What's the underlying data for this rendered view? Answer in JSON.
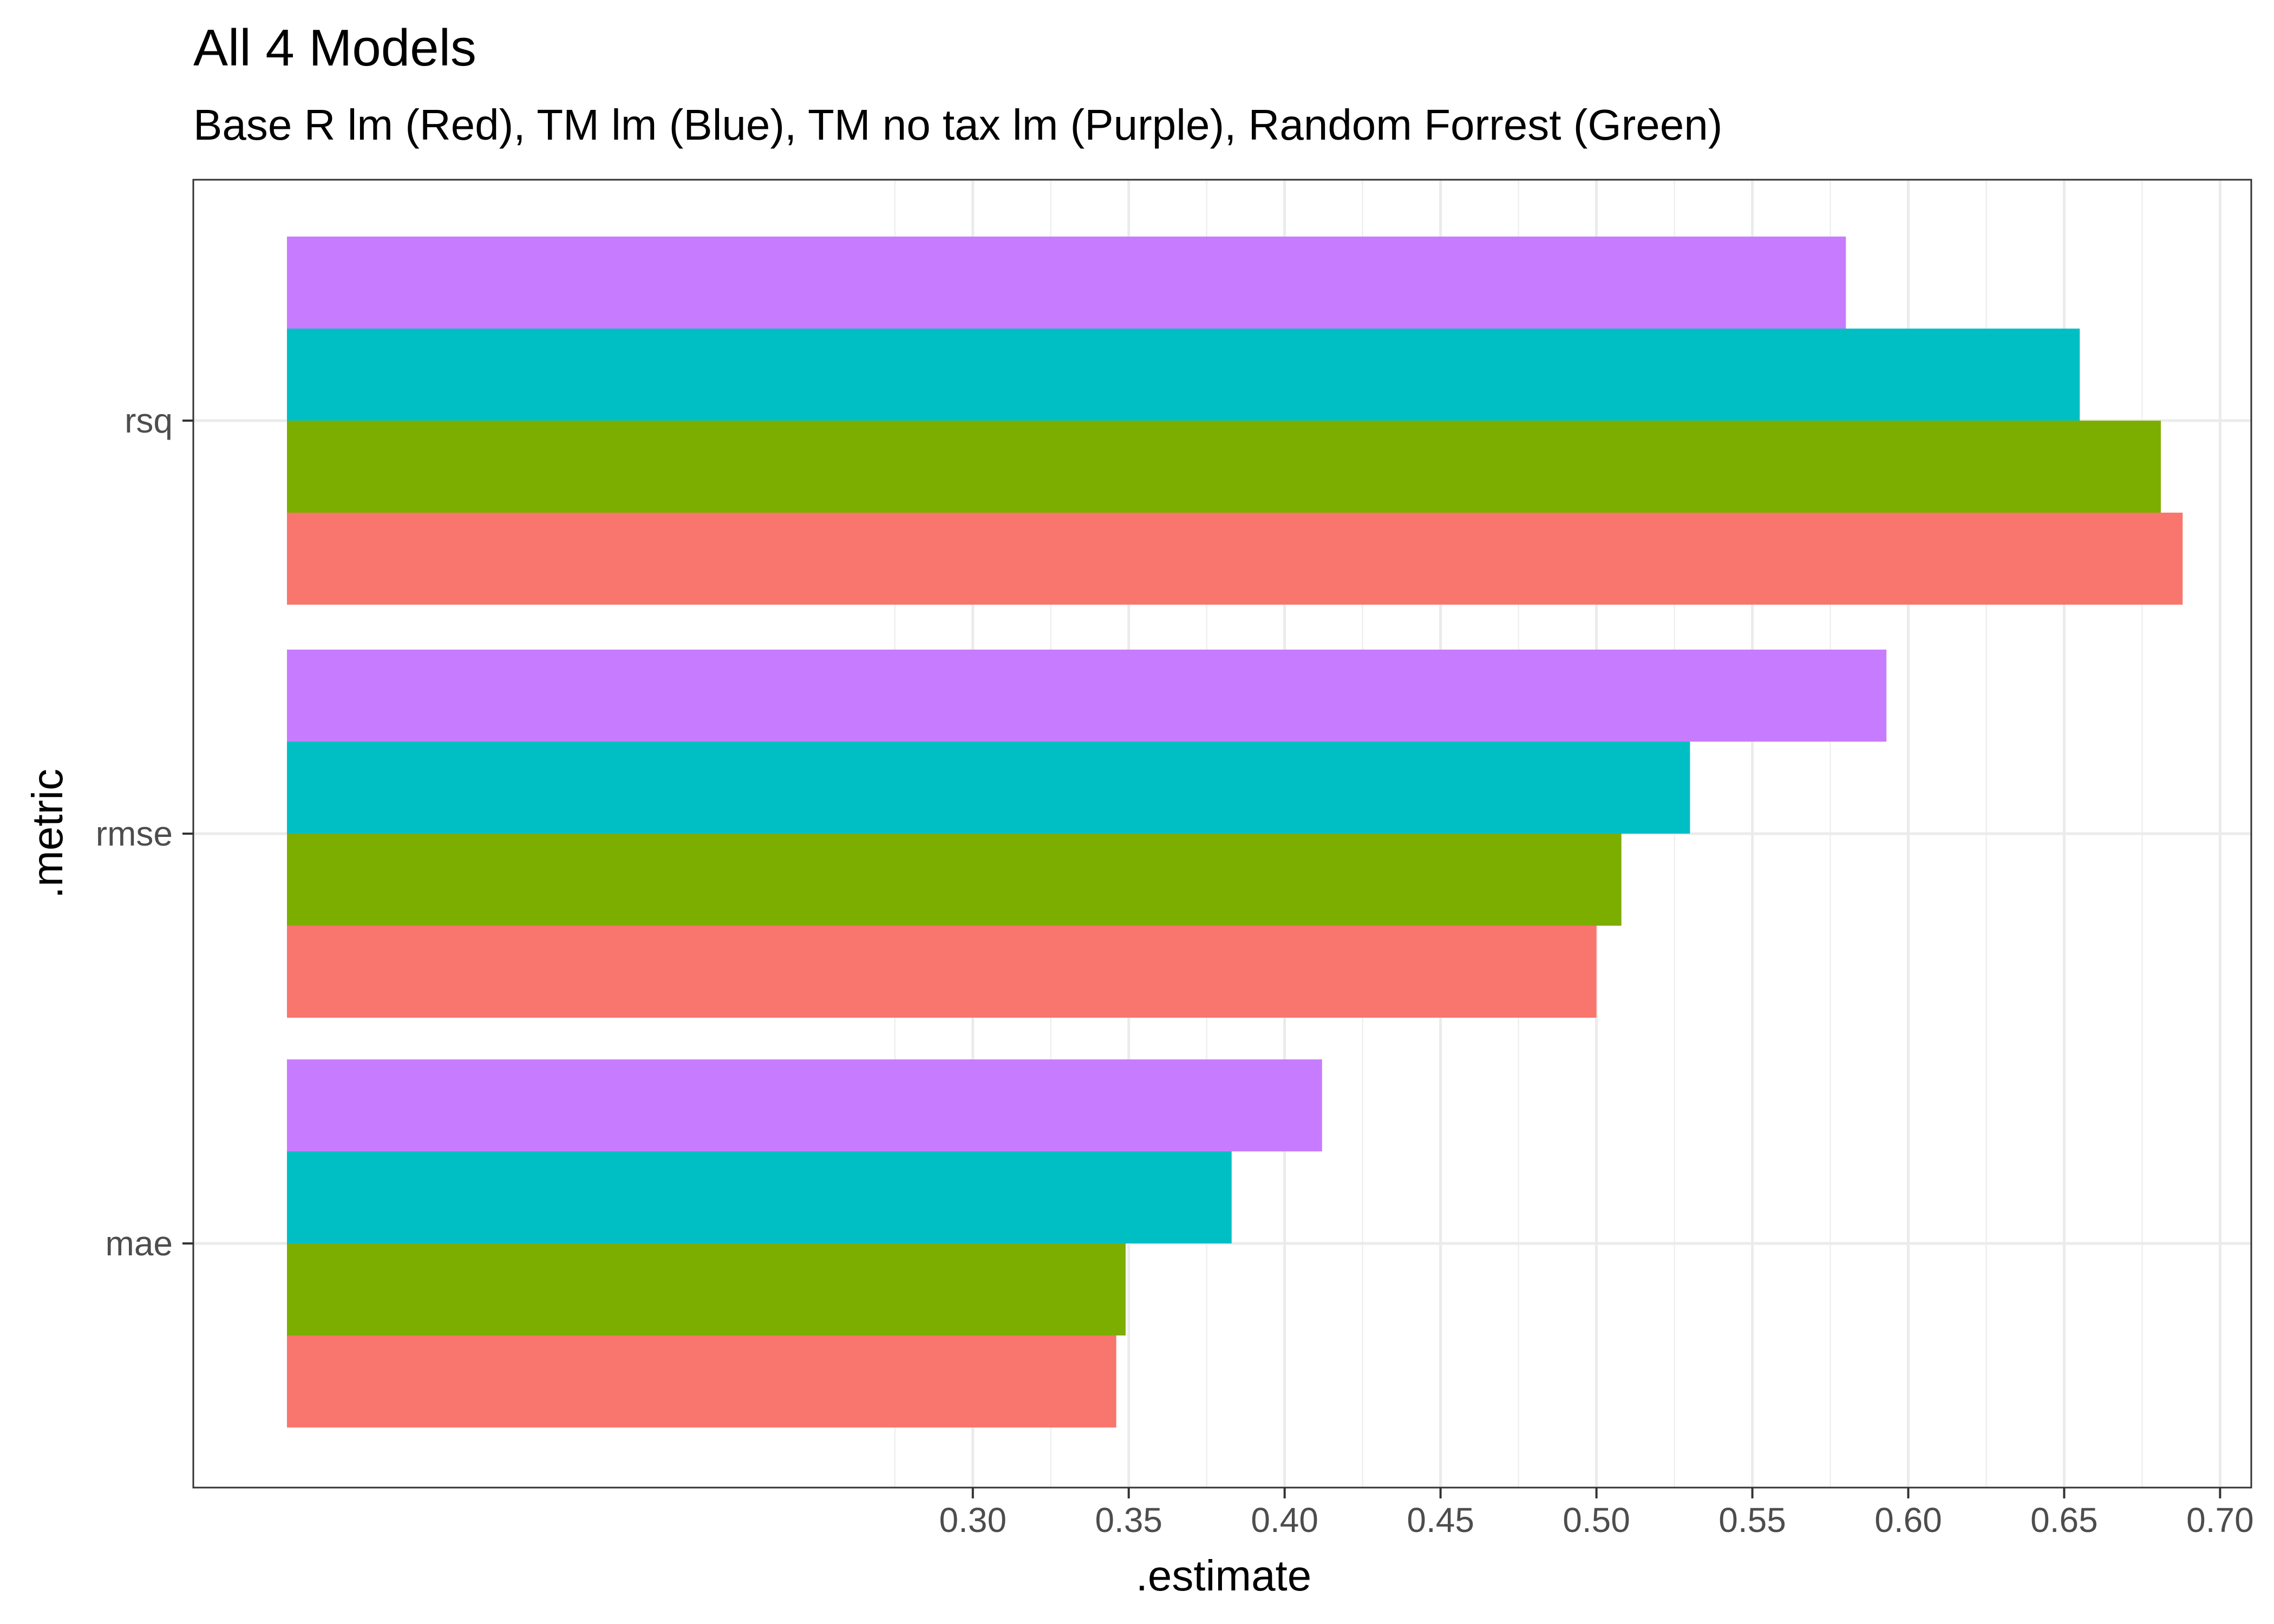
{
  "chart_data": {
    "type": "bar",
    "orientation": "horizontal",
    "title": "All 4 Models",
    "subtitle": "Base R lm (Red), TM lm (Blue), TM no tax lm (Purple), Random Forrest (Green)",
    "xlabel": ".estimate",
    "ylabel": ".metric",
    "categories": [
      "rsq",
      "rmse",
      "mae"
    ],
    "xlim": [
      0.05,
      0.71
    ],
    "x_ticks": [
      "0.30",
      "0.35",
      "0.40",
      "0.45",
      "0.50",
      "0.55",
      "0.60",
      "0.65",
      "0.70"
    ],
    "grid": true,
    "legend": "none",
    "series": [
      {
        "color": "#C77CFF",
        "values": [
          0.58,
          0.593,
          0.412
        ]
      },
      {
        "color": "#00BFC4",
        "values": [
          0.655,
          0.53,
          0.383
        ]
      },
      {
        "color": "#7CAE00",
        "values": [
          0.681,
          0.508,
          0.349
        ]
      },
      {
        "color": "#F8766D",
        "values": [
          0.688,
          0.5,
          0.346
        ]
      }
    ]
  }
}
